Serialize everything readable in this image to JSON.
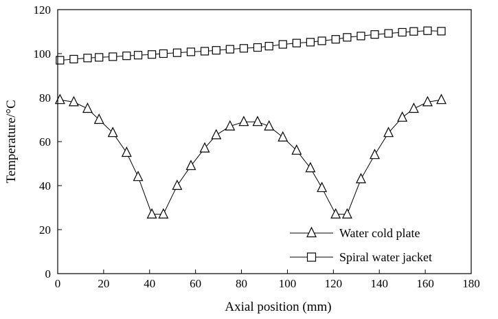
{
  "chart_data": {
    "type": "line",
    "title": "",
    "xlabel": "Axial position (mm)",
    "ylabel": "Temperature/°C",
    "xlim": [
      0,
      180
    ],
    "ylim": [
      0,
      120
    ],
    "xticks": [
      "0",
      "20",
      "40",
      "60",
      "80",
      "100",
      "120",
      "140",
      "160",
      "180"
    ],
    "yticks": [
      "0",
      "20",
      "40",
      "60",
      "80",
      "100",
      "120"
    ],
    "grid": false,
    "legend_position": "bottom-right",
    "series": [
      {
        "name": "Water cold plate",
        "marker": "triangle",
        "x": [
          1,
          7,
          13,
          18,
          24,
          30,
          35,
          41,
          46,
          52,
          58,
          64,
          69,
          75,
          81,
          87,
          92,
          98,
          104,
          110,
          115,
          121,
          126,
          132,
          138,
          144,
          150,
          155,
          161,
          167
        ],
        "y": [
          79,
          78,
          75,
          70,
          64,
          55,
          44,
          27,
          27,
          40,
          49,
          57,
          63,
          67,
          69,
          69,
          67,
          62,
          56,
          48,
          39,
          27,
          27,
          43,
          54,
          64,
          71,
          75,
          78,
          79
        ]
      },
      {
        "name": "Spiral water jacket",
        "marker": "square",
        "x": [
          1,
          7,
          13,
          18,
          24,
          30,
          35,
          41,
          46,
          52,
          58,
          64,
          69,
          75,
          81,
          87,
          92,
          98,
          104,
          110,
          115,
          121,
          126,
          132,
          138,
          144,
          150,
          155,
          161,
          167
        ],
        "y": [
          97,
          97.5,
          98,
          98.3,
          98.6,
          99,
          99.3,
          99.6,
          100,
          100.4,
          100.8,
          101.1,
          101.5,
          102,
          102.4,
          102.8,
          103.4,
          104.2,
          104.8,
          105.2,
          105.8,
          106.5,
          107.4,
          108,
          108.7,
          109.2,
          109.7,
          110.1,
          110.4,
          110.2
        ]
      }
    ]
  }
}
